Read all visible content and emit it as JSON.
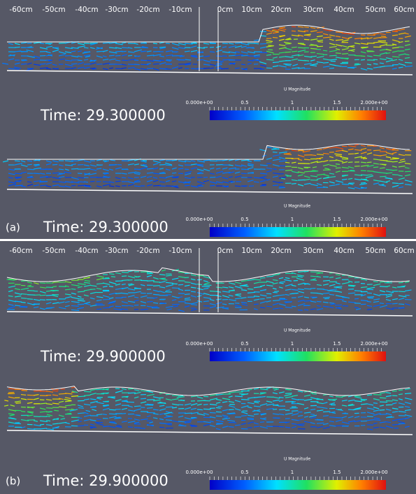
{
  "panels": [
    {
      "label": "(a)",
      "ruler": [
        "-60cm",
        "-50cm",
        "-40cm",
        "-30cm",
        "-20cm",
        "-10cm",
        "0cm",
        "10cm",
        "20cm",
        "30cm",
        "40cm",
        "50cm",
        "60cm"
      ],
      "top": {
        "time": "Time: 29.300000",
        "colorbar": {
          "title": "U Magnitude",
          "ticks": [
            "0.000e+00",
            "0.5",
            "1",
            "1.5",
            "2.000e+00"
          ]
        }
      },
      "bottom": {
        "time": "Time: 29.300000",
        "colorbar": {
          "title": "U Magnitude",
          "ticks": [
            "0.000e+00",
            "0.5",
            "1",
            "1.5",
            "2.000e+00"
          ]
        }
      }
    },
    {
      "label": "(b)",
      "ruler": [
        "-60cm",
        "-50cm",
        "-40cm",
        "-30cm",
        "-20cm",
        "-10cm",
        "0cm",
        "10cm",
        "20cm",
        "30cm",
        "40cm",
        "50cm",
        "60cm"
      ],
      "top": {
        "time": "Time: 29.900000",
        "colorbar": {
          "title": "U Magnitude",
          "ticks": [
            "0.000e+00",
            "0.5",
            "1",
            "1.5",
            "2.000e+00"
          ]
        }
      },
      "bottom": {
        "time": "Time: 29.900000",
        "colorbar": {
          "title": "U Magnitude",
          "ticks": [
            "0.000e+00",
            "0.5",
            "1",
            "1.5",
            "2.000e+00"
          ]
        }
      }
    }
  ]
}
